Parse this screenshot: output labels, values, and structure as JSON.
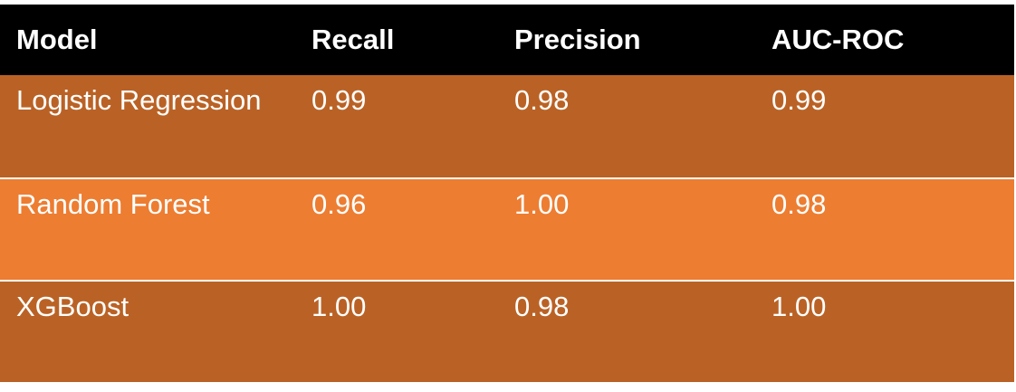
{
  "table": {
    "headers": [
      "Model",
      "Recall",
      "Precision",
      "AUC-ROC"
    ],
    "rows": [
      [
        "Logistic Regression",
        "0.99",
        "0.98",
        "0.99"
      ],
      [
        "Random Forest",
        "0.96",
        "1.00",
        "0.98"
      ],
      [
        "XGBoost",
        "1.00",
        "0.98",
        "1.00"
      ]
    ]
  },
  "colors": {
    "header_bg": "#000000",
    "row_dark": "#ba6225",
    "row_light": "#ed7d31",
    "text": "#ffffff"
  }
}
